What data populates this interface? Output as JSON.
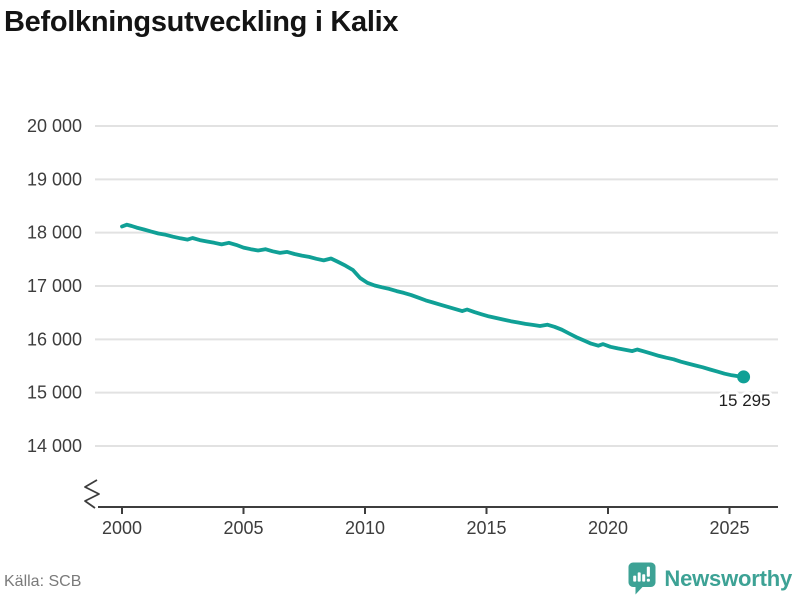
{
  "title": "Befolkningsutveckling i Kalix",
  "source": {
    "text": "Källa: SCB"
  },
  "branding": {
    "name": "Newsworthy",
    "icon": "newsworthy-pin-barchart-icon"
  },
  "colors": {
    "background": "#ffffff",
    "line": "#10a096",
    "point": "#10a096",
    "grid": "#e2e2e2",
    "axis": "#3d3d3d",
    "tick_text": "#3d3d3d",
    "title_text": "#141414",
    "source_text": "#7a7a7a",
    "brand": "#3da295",
    "end_label_text": "#1f1f1f"
  },
  "chart_data": {
    "type": "line",
    "title": "Befolkningsutveckling i Kalix",
    "xlabel": "",
    "ylabel": "",
    "xlim": [
      1998.9,
      2027
    ],
    "ylim": [
      14000,
      20000
    ],
    "grid": true,
    "legend": "none",
    "y_axis_break": true,
    "xticks": [
      2000,
      2005,
      2010,
      2015,
      2020,
      2025
    ],
    "xtick_labels": [
      "2000",
      "2005",
      "2010",
      "2015",
      "2020",
      "2025"
    ],
    "yticks": [
      14000,
      15000,
      16000,
      17000,
      18000,
      19000,
      20000
    ],
    "ytick_labels": [
      "14 000",
      "15 000",
      "16 000",
      "17 000",
      "18 000",
      "19 000",
      "20 000"
    ],
    "end_label": "15 295",
    "end_value": 15295,
    "series": [
      {
        "name": "Befolkning i Kalix",
        "points": [
          [
            2000.0,
            18115
          ],
          [
            2000.2,
            18150
          ],
          [
            2000.4,
            18125
          ],
          [
            2000.6,
            18095
          ],
          [
            2000.9,
            18060
          ],
          [
            2001.2,
            18020
          ],
          [
            2001.5,
            17985
          ],
          [
            2001.8,
            17960
          ],
          [
            2002.1,
            17925
          ],
          [
            2002.4,
            17895
          ],
          [
            2002.7,
            17870
          ],
          [
            2002.9,
            17900
          ],
          [
            2003.2,
            17860
          ],
          [
            2003.5,
            17835
          ],
          [
            2003.8,
            17810
          ],
          [
            2004.1,
            17780
          ],
          [
            2004.4,
            17810
          ],
          [
            2004.7,
            17770
          ],
          [
            2005.0,
            17720
          ],
          [
            2005.3,
            17690
          ],
          [
            2005.6,
            17665
          ],
          [
            2005.9,
            17690
          ],
          [
            2006.2,
            17650
          ],
          [
            2006.5,
            17620
          ],
          [
            2006.8,
            17640
          ],
          [
            2007.1,
            17600
          ],
          [
            2007.4,
            17570
          ],
          [
            2007.7,
            17545
          ],
          [
            2008.0,
            17510
          ],
          [
            2008.3,
            17480
          ],
          [
            2008.6,
            17515
          ],
          [
            2008.9,
            17450
          ],
          [
            2009.2,
            17380
          ],
          [
            2009.5,
            17300
          ],
          [
            2009.8,
            17150
          ],
          [
            2010.1,
            17060
          ],
          [
            2010.4,
            17010
          ],
          [
            2010.7,
            16975
          ],
          [
            2011.0,
            16945
          ],
          [
            2011.3,
            16905
          ],
          [
            2011.6,
            16870
          ],
          [
            2011.9,
            16830
          ],
          [
            2012.2,
            16780
          ],
          [
            2012.5,
            16730
          ],
          [
            2012.8,
            16690
          ],
          [
            2013.1,
            16650
          ],
          [
            2013.4,
            16610
          ],
          [
            2013.7,
            16570
          ],
          [
            2014.0,
            16530
          ],
          [
            2014.2,
            16560
          ],
          [
            2014.5,
            16510
          ],
          [
            2014.8,
            16470
          ],
          [
            2015.1,
            16430
          ],
          [
            2015.4,
            16400
          ],
          [
            2015.7,
            16370
          ],
          [
            2016.0,
            16340
          ],
          [
            2016.3,
            16315
          ],
          [
            2016.6,
            16290
          ],
          [
            2016.9,
            16270
          ],
          [
            2017.2,
            16250
          ],
          [
            2017.5,
            16275
          ],
          [
            2017.8,
            16235
          ],
          [
            2018.1,
            16180
          ],
          [
            2018.4,
            16110
          ],
          [
            2018.7,
            16040
          ],
          [
            2019.0,
            15980
          ],
          [
            2019.3,
            15920
          ],
          [
            2019.6,
            15880
          ],
          [
            2019.8,
            15910
          ],
          [
            2020.1,
            15860
          ],
          [
            2020.4,
            15830
          ],
          [
            2020.7,
            15805
          ],
          [
            2021.0,
            15780
          ],
          [
            2021.2,
            15810
          ],
          [
            2021.5,
            15770
          ],
          [
            2021.8,
            15730
          ],
          [
            2022.1,
            15690
          ],
          [
            2022.4,
            15655
          ],
          [
            2022.7,
            15625
          ],
          [
            2023.0,
            15580
          ],
          [
            2023.3,
            15545
          ],
          [
            2023.6,
            15510
          ],
          [
            2023.9,
            15475
          ],
          [
            2024.2,
            15435
          ],
          [
            2024.5,
            15395
          ],
          [
            2024.8,
            15355
          ],
          [
            2025.1,
            15325
          ],
          [
            2025.4,
            15305
          ],
          [
            2025.58,
            15295
          ]
        ]
      }
    ]
  }
}
